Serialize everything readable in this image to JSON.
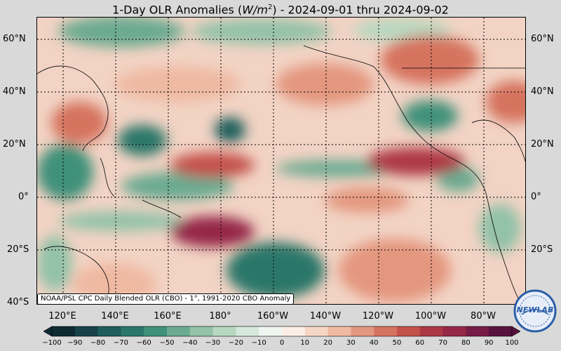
{
  "header": {
    "title_prefix": "1-Day OLR Anomalies (",
    "title_units_main": "W/m",
    "title_units_sup": "2",
    "title_suffix": ") - 2024-09-01 thru 2024-09-02"
  },
  "axes": {
    "lat_labels": [
      "60°N",
      "40°N",
      "20°N",
      "0°",
      "20°S",
      "40°S"
    ],
    "lon_labels": [
      "120°E",
      "140°E",
      "160°E",
      "180°",
      "160°W",
      "140°W",
      "120°W",
      "100°W",
      "80°W"
    ]
  },
  "credit": "NOAA/PSL CPC Daily Blended OLR (CBO) - 1°, 1991-2020 CBO Anomaly",
  "colorbar": {
    "ticks": [
      "−100",
      "−90",
      "−80",
      "−70",
      "−60",
      "−50",
      "−40",
      "−30",
      "−20",
      "−10",
      "0",
      "10",
      "20",
      "30",
      "40",
      "50",
      "60",
      "70",
      "80",
      "90",
      "100"
    ],
    "colors": [
      "#0f2a33",
      "#17424a",
      "#1f5d5c",
      "#2a7769",
      "#3f9179",
      "#6aaa90",
      "#93c2a8",
      "#b7d8c0",
      "#d5e9da",
      "#eef6f1",
      "#fbeee6",
      "#f6d6c5",
      "#efb9a2",
      "#e4977f",
      "#d6735f",
      "#c4514b",
      "#ad3744",
      "#942846",
      "#771c46",
      "#57123e"
    ]
  },
  "logo": {
    "text": "NEWLAB",
    "colors": {
      "ring": "#2b5ea8",
      "fill": "#e8eef8"
    }
  }
}
